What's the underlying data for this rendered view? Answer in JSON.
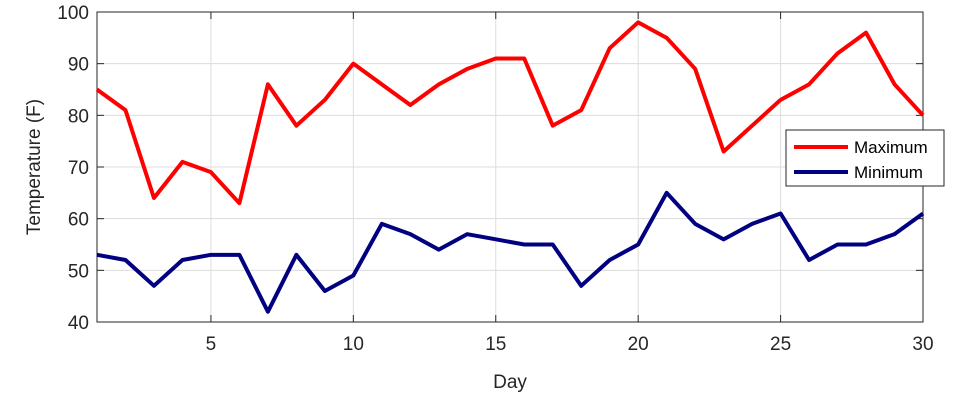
{
  "chart_data": {
    "type": "line",
    "title": "",
    "xlabel": "Day",
    "ylabel": "Temperature (F)",
    "xlim": [
      1,
      30
    ],
    "ylim": [
      40,
      100
    ],
    "xticks": [
      5,
      10,
      15,
      20,
      25,
      30
    ],
    "yticks": [
      40,
      50,
      60,
      70,
      80,
      90,
      100
    ],
    "grid": true,
    "legend_position": "right",
    "x": [
      1,
      2,
      3,
      4,
      5,
      6,
      7,
      8,
      9,
      10,
      11,
      12,
      13,
      14,
      15,
      16,
      17,
      18,
      19,
      20,
      21,
      22,
      23,
      24,
      25,
      26,
      27,
      28,
      29,
      30
    ],
    "series": [
      {
        "name": "Maximum",
        "color": "#ff0000",
        "values": [
          85,
          81,
          64,
          71,
          69,
          63,
          86,
          78,
          83,
          90,
          86,
          82,
          86,
          89,
          91,
          91,
          78,
          81,
          93,
          98,
          95,
          89,
          73,
          78,
          83,
          86,
          92,
          96,
          86,
          80
        ]
      },
      {
        "name": "Minimum",
        "color": "#000080",
        "values": [
          53,
          52,
          47,
          52,
          53,
          53,
          42,
          53,
          46,
          49,
          59,
          57,
          54,
          57,
          56,
          55,
          55,
          47,
          52,
          55,
          65,
          59,
          56,
          59,
          61,
          52,
          55,
          55,
          57,
          61
        ]
      }
    ]
  }
}
